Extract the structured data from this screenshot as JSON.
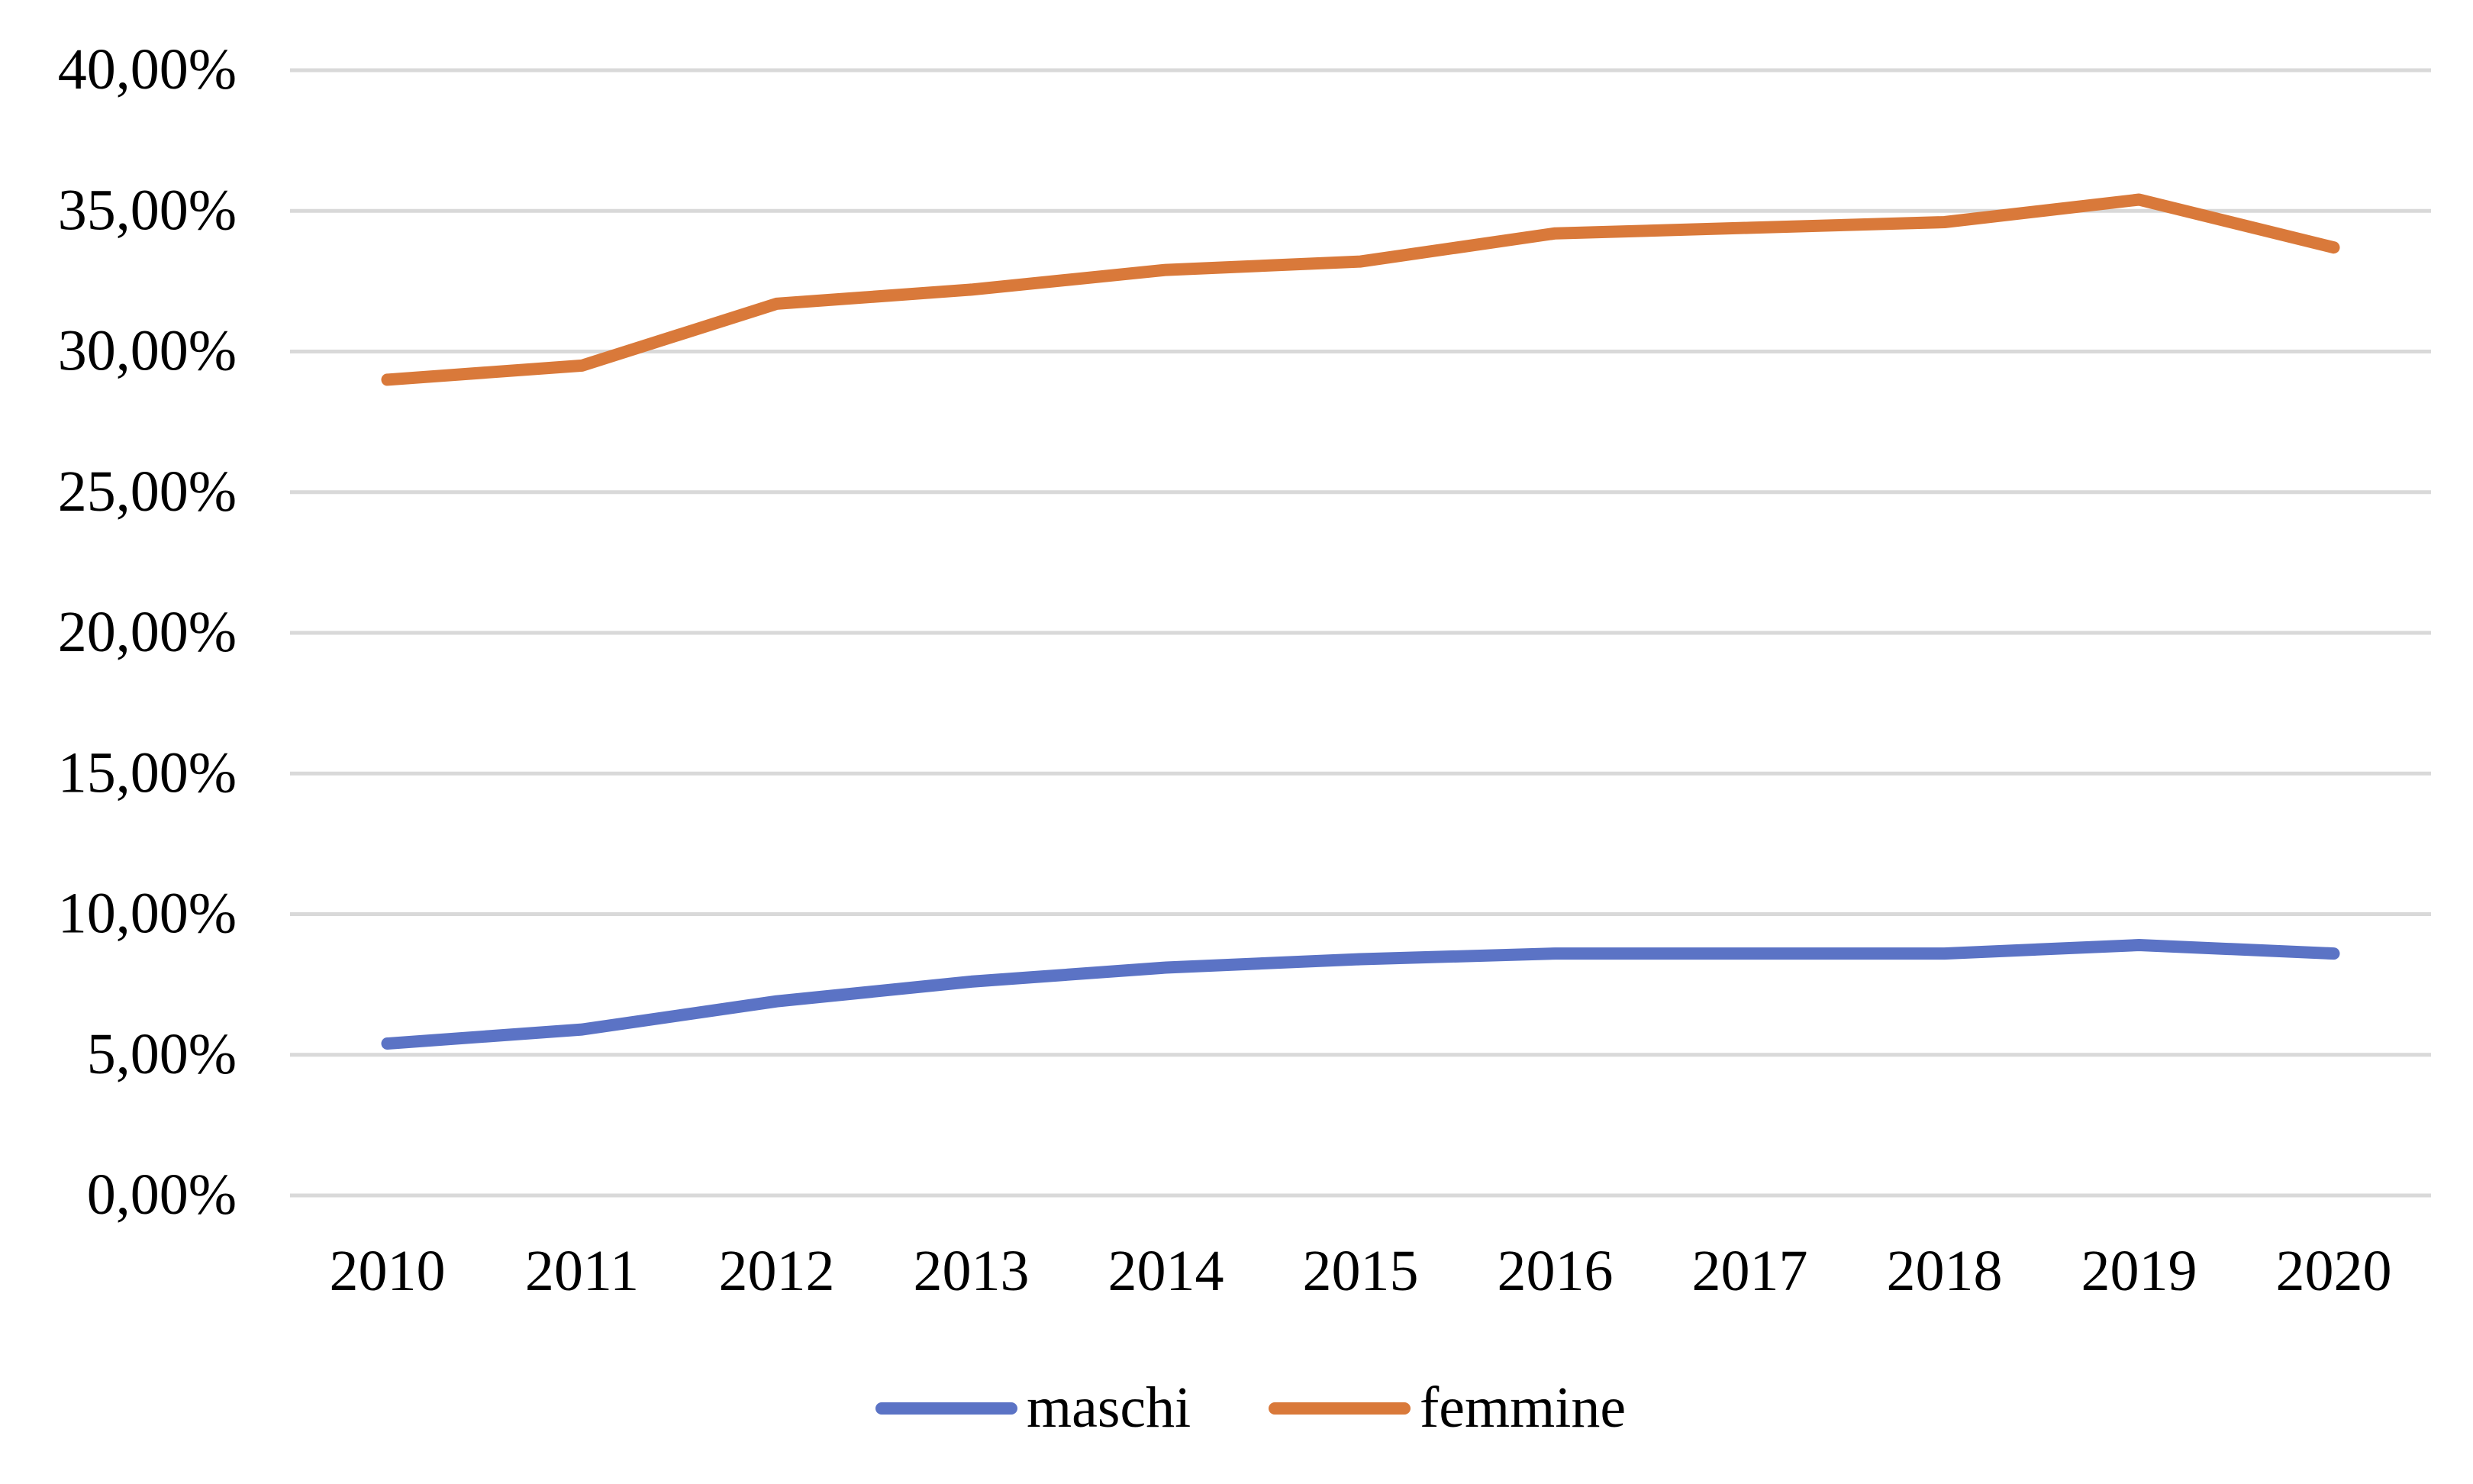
{
  "chart_data": {
    "type": "line",
    "title": "",
    "xlabel": "",
    "ylabel": "",
    "categories": [
      "2010",
      "2011",
      "2012",
      "2013",
      "2014",
      "2015",
      "2016",
      "2017",
      "2018",
      "2019",
      "2020"
    ],
    "y_ticks": [
      0,
      5,
      10,
      15,
      20,
      25,
      30,
      35,
      40
    ],
    "y_tick_labels": [
      "0,00%",
      "5,00%",
      "10,00%",
      "15,00%",
      "20,00%",
      "25,00%",
      "30,00%",
      "35,00%",
      "40,00%"
    ],
    "ylim": [
      0,
      40
    ],
    "grid": true,
    "legend_position": "bottom",
    "series": [
      {
        "name": "maschi",
        "color": "#5b73c5",
        "values": [
          5.4,
          5.9,
          6.9,
          7.6,
          8.1,
          8.4,
          8.6,
          8.6,
          8.6,
          8.9,
          8.6
        ]
      },
      {
        "name": "femmine",
        "color": "#d9793a",
        "values": [
          29.0,
          29.5,
          31.7,
          32.2,
          32.9,
          33.2,
          34.2,
          34.4,
          34.6,
          35.4,
          33.7
        ]
      }
    ]
  }
}
